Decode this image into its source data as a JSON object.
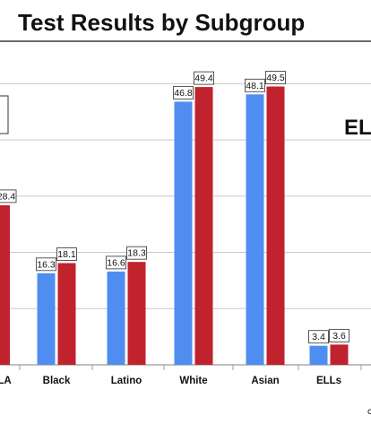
{
  "chart_data": {
    "type": "bar",
    "title": "Test Results by Subgroup",
    "title_visible": "Test Results by Subgroup",
    "side_label": "ELL",
    "partial_category": "LA",
    "partial_value": 28.4,
    "categories": [
      "Black",
      "Latino",
      "White",
      "Asian",
      "ELLs"
    ],
    "series": [
      {
        "values": [
          16.3,
          16.6,
          46.8,
          48.1,
          3.4
        ],
        "color": "#4f8ef0"
      },
      {
        "values": [
          18.1,
          18.3,
          49.4,
          49.5,
          3.6
        ],
        "color": "#c0222e"
      }
    ],
    "ylim": [
      0,
      55
    ],
    "grid": true,
    "footer_glyph": "c",
    "colors": {
      "blue": "#4f8ef0",
      "red": "#c0222e",
      "grid": "#c9c9c9",
      "axis": "#9a9a9a"
    }
  }
}
